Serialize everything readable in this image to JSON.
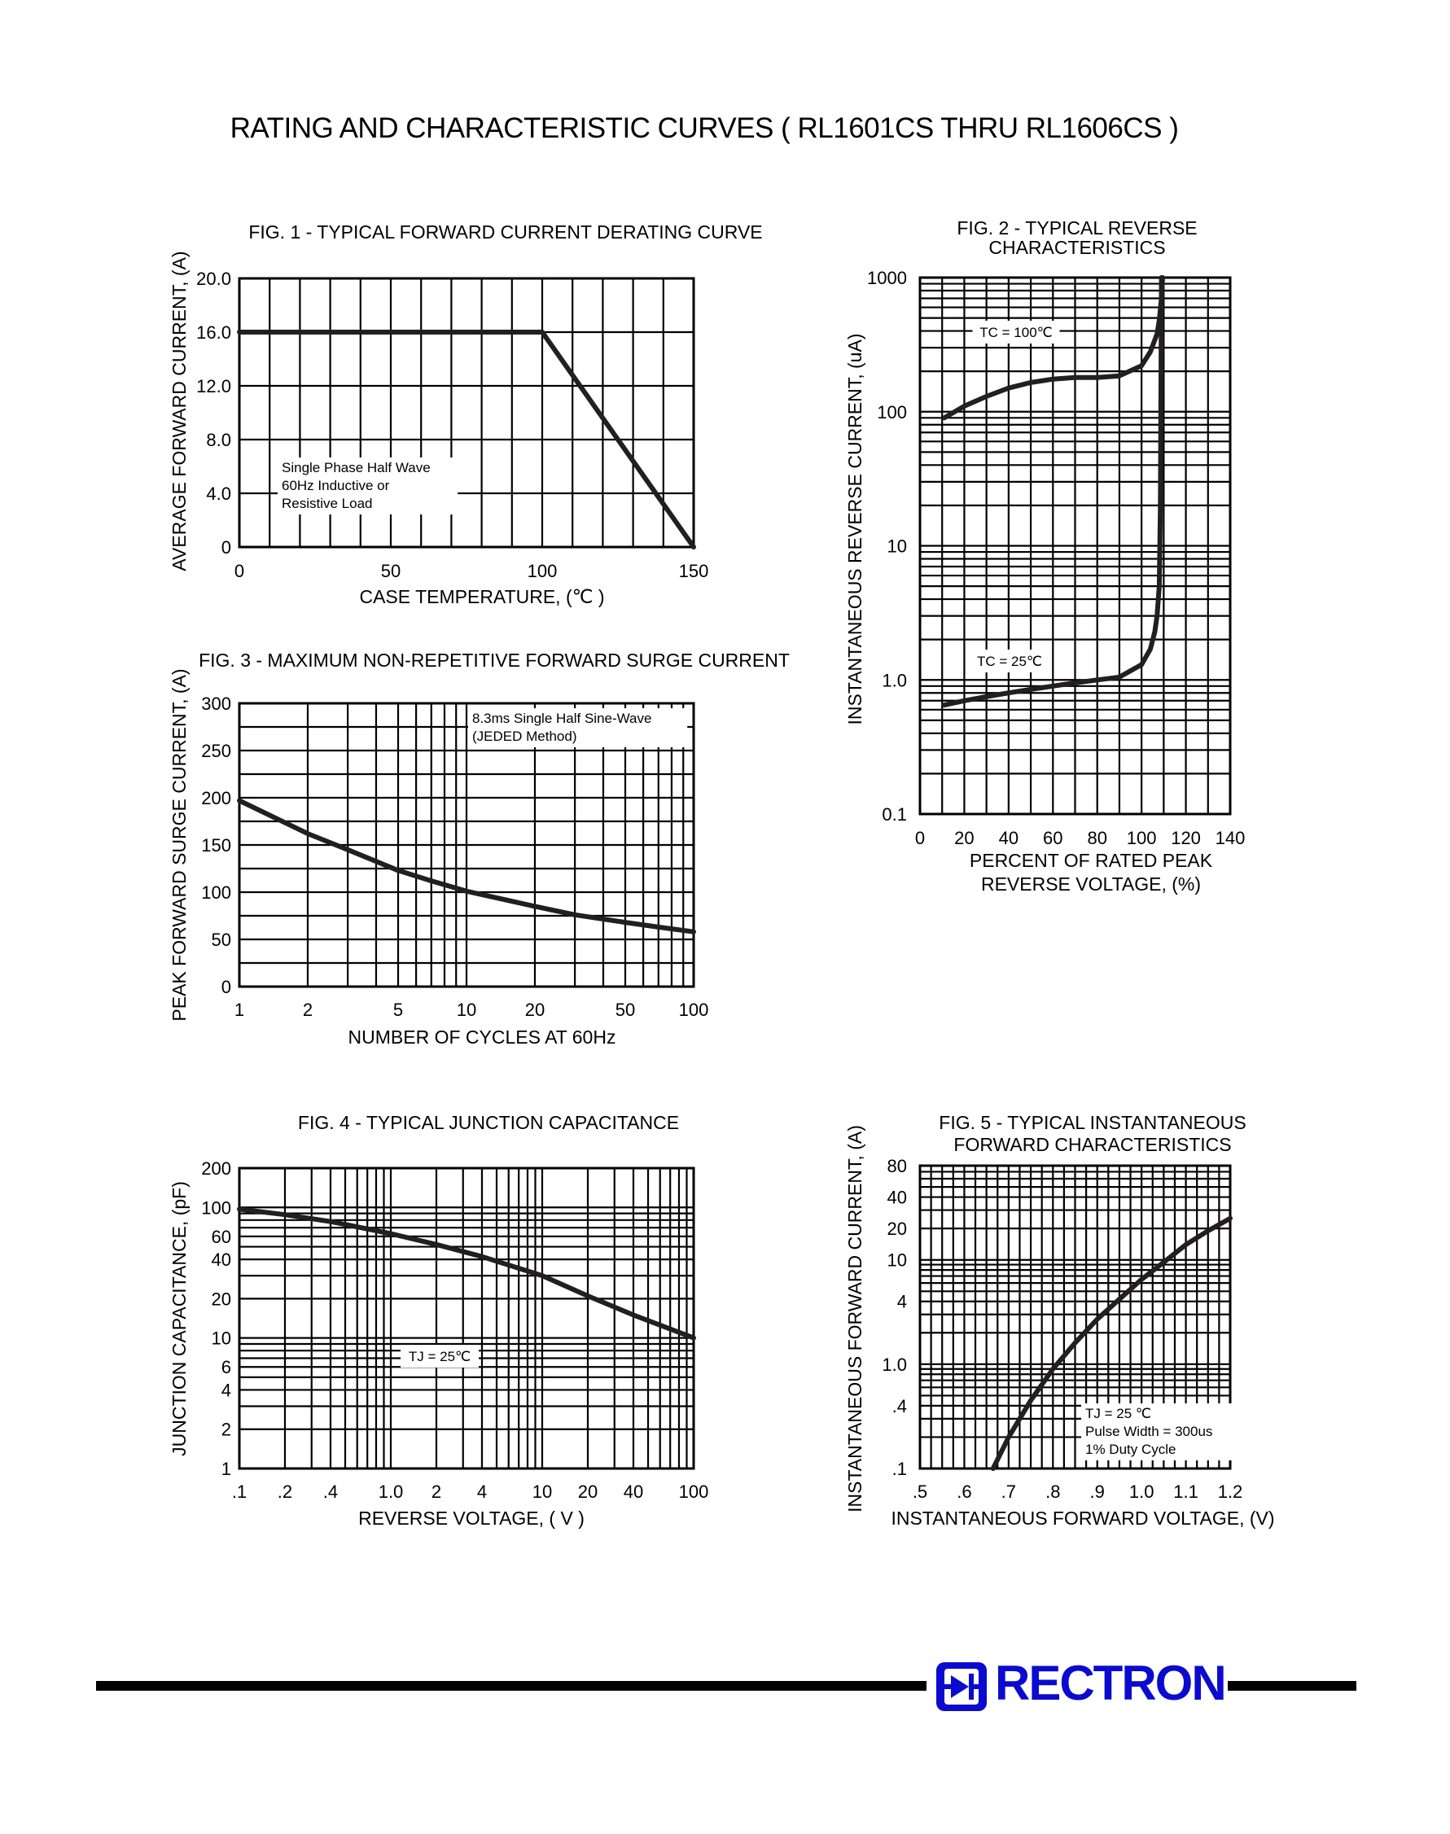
{
  "page": {
    "title": "RATING AND CHARACTERISTIC CURVES ( RL1601CS THRU RL1606CS )"
  },
  "brand": {
    "name": "RECTRON",
    "color": "#0b0bcf"
  },
  "chart_data": [
    {
      "type": "line",
      "title": "FIG. 1 - TYPICAL FORWARD CURRENT DERATING CURVE",
      "xlabel": "CASE TEMPERATURE, (℃ )",
      "ylabel": "AVERAGE FORWARD CURRENT, (A)",
      "xscale": "linear",
      "yscale": "linear",
      "xlim": [
        0,
        150
      ],
      "ylim": [
        0,
        20
      ],
      "grid": true,
      "x_ticks": [
        "0",
        "50",
        "100",
        "150"
      ],
      "y_ticks": [
        "0",
        "4.0",
        "8.0",
        "12.0",
        "16.0",
        "20.0"
      ],
      "annotation": [
        "Single Phase Half Wave",
        "60Hz Inductive or",
        "Resistive Load"
      ],
      "series": [
        {
          "x": [
            0,
            100,
            150
          ],
          "y": [
            16,
            16,
            0
          ]
        }
      ]
    },
    {
      "type": "line",
      "title": [
        "FIG. 2 - TYPICAL REVERSE",
        "CHARACTERISTICS"
      ],
      "xlabel": [
        "PERCENT OF RATED PEAK",
        "REVERSE VOLTAGE, (%)"
      ],
      "ylabel": "INSTANTANEOUS REVERSE CURRENT, (uA)",
      "xscale": "linear",
      "yscale": "log",
      "xlim": [
        0,
        140
      ],
      "ylim": [
        0.1,
        1000
      ],
      "grid": true,
      "x_ticks": [
        "0",
        "20",
        "40",
        "60",
        "80",
        "100",
        "120",
        "140"
      ],
      "y_ticks": [
        "0.1",
        "1.0",
        "10",
        "100",
        "1000"
      ],
      "series": [
        {
          "name": "TC = 100℃",
          "x": [
            11,
            20,
            30,
            40,
            50,
            60,
            70,
            80,
            90,
            100,
            104,
            107,
            108,
            109,
            109.5
          ],
          "y": [
            90,
            110,
            130,
            150,
            165,
            175,
            180,
            180,
            185,
            220,
            280,
            380,
            480,
            700,
            1000
          ]
        },
        {
          "name": "TC = 25℃",
          "x": [
            11,
            20,
            30,
            40,
            50,
            60,
            70,
            80,
            90,
            100,
            104,
            106,
            107,
            108,
            108.5,
            109
          ],
          "y": [
            0.65,
            0.7,
            0.75,
            0.8,
            0.85,
            0.9,
            0.95,
            1.0,
            1.05,
            1.3,
            1.7,
            2.3,
            3.0,
            5,
            20,
            1000
          ]
        }
      ]
    },
    {
      "type": "line",
      "title": "FIG. 3 - MAXIMUM NON-REPETITIVE FORWARD SURGE CURRENT",
      "xlabel": "NUMBER OF CYCLES AT 60Hz",
      "ylabel": "PEAK FORWARD SURGE CURRENT, (A)",
      "xscale": "log",
      "yscale": "linear",
      "xlim": [
        1,
        100
      ],
      "ylim": [
        0,
        300
      ],
      "grid": true,
      "x_ticks": [
        "1",
        "2",
        "5",
        "10",
        "20",
        "50",
        "100"
      ],
      "y_ticks": [
        "0",
        "50",
        "100",
        "150",
        "200",
        "250",
        "300"
      ],
      "annotation": [
        "8.3ms Single Half Sine-Wave",
        "(JEDED Method)"
      ],
      "series": [
        {
          "x": [
            1,
            2,
            3,
            5,
            7,
            10,
            20,
            30,
            50,
            70,
            100
          ],
          "y": [
            197,
            162,
            145,
            123,
            112,
            101,
            85,
            76,
            68,
            63,
            58
          ]
        }
      ]
    },
    {
      "type": "line",
      "title": "FIG. 4 - TYPICAL JUNCTION CAPACITANCE",
      "xlabel": "REVERSE VOLTAGE, ( V )",
      "ylabel": "JUNCTION CAPACITANCE, (pF)",
      "xscale": "log",
      "yscale": "log",
      "xlim": [
        0.1,
        100
      ],
      "ylim": [
        1,
        200
      ],
      "grid": true,
      "x_ticks": [
        ".1",
        ".2",
        ".4",
        "1.0",
        "2",
        "4",
        "10",
        "20",
        "40",
        "100"
      ],
      "y_ticks": [
        "1",
        "2",
        "4",
        "6",
        "10",
        "20",
        "40",
        "60",
        "100",
        "200"
      ],
      "series": [
        {
          "name": "TJ = 25℃",
          "x": [
            0.1,
            0.2,
            0.4,
            1,
            2,
            4,
            10,
            20,
            40,
            100
          ],
          "y": [
            97,
            88,
            78,
            63,
            52,
            42,
            30,
            21,
            15,
            10
          ]
        }
      ]
    },
    {
      "type": "line",
      "title": [
        "FIG. 5 - TYPICAL INSTANTANEOUS",
        "FORWARD CHARACTERISTICS"
      ],
      "xlabel": "INSTANTANEOUS FORWARD VOLTAGE, (V)",
      "ylabel": "INSTANTANEOUS FORWARD CURRENT, (A)",
      "xscale": "linear",
      "yscale": "log",
      "xlim": [
        0.5,
        1.2
      ],
      "ylim": [
        0.1,
        80
      ],
      "grid": true,
      "x_ticks": [
        ".5",
        ".6",
        ".7",
        ".8",
        ".9",
        "1.0",
        "1.1",
        "1.2"
      ],
      "y_ticks": [
        ".1",
        ".4",
        "1.0",
        "4",
        "10",
        "20",
        "40",
        "80"
      ],
      "annotation": [
        "TJ = 25 ℃",
        "Pulse Width = 300us",
        "1% Duty Cycle"
      ],
      "series": [
        {
          "x": [
            0.665,
            0.7,
            0.75,
            0.8,
            0.85,
            0.9,
            0.95,
            1.0,
            1.05,
            1.1,
            1.15,
            1.2
          ],
          "y": [
            0.1,
            0.2,
            0.45,
            0.9,
            1.6,
            2.7,
            4.2,
            6.5,
            9.5,
            14,
            19,
            25
          ]
        }
      ]
    }
  ]
}
